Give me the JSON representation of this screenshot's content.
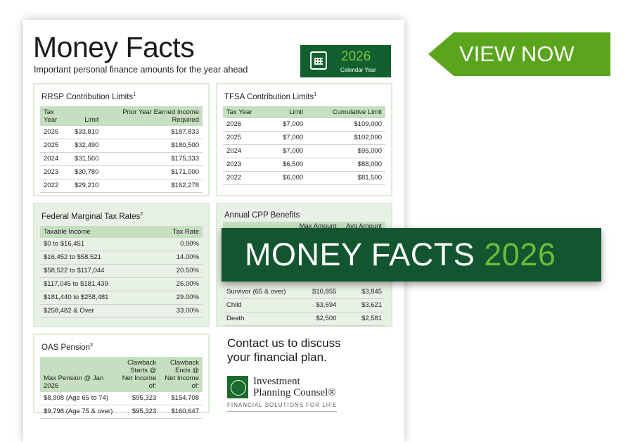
{
  "header": {
    "title": "Money Facts",
    "subtitle": "Important personal finance amounts for the year ahead",
    "calendar_year": "2026",
    "calendar_label": "Calendar Year"
  },
  "rrsp": {
    "title": "RRSP Contribution Limits",
    "sup": "1",
    "headers": [
      "Tax Year",
      "Limit",
      "Prior Year Earned Income Required"
    ],
    "rows": [
      [
        "2026",
        "$33,810",
        "$187,833"
      ],
      [
        "2025",
        "$32,490",
        "$180,500"
      ],
      [
        "2024",
        "$31,560",
        "$175,333"
      ],
      [
        "2023",
        "$30,780",
        "$171,000"
      ],
      [
        "2022",
        "$29,210",
        "$162,278"
      ]
    ]
  },
  "tfsa": {
    "title": "TFSA Contribution Limits",
    "sup": "1",
    "headers": [
      "Tax Year",
      "Limit",
      "Cumulative Limit"
    ],
    "rows": [
      [
        "2026",
        "$7,000",
        "$109,000"
      ],
      [
        "2025",
        "$7,000",
        "$102,000"
      ],
      [
        "2024",
        "$7,000",
        "$95,000"
      ],
      [
        "2023",
        "$6,500",
        "$88,000"
      ],
      [
        "2022",
        "$6,000",
        "$81,500"
      ]
    ]
  },
  "federal": {
    "title": "Federal Marginal Tax Rates",
    "sup": "2",
    "headers": [
      "Taxable Income",
      "Tax Rate"
    ],
    "rows": [
      [
        "$0 to $16,451",
        "0.00%"
      ],
      [
        "$16,452 to $58,521",
        "14.00%"
      ],
      [
        "$58,522 to $117,044",
        "20.50%"
      ],
      [
        "$117,045 to $181,439",
        "26.00%"
      ],
      [
        "$181,440  to $258,481",
        "29.00%"
      ],
      [
        "$258,482 & Over",
        "33.00%"
      ]
    ]
  },
  "cpp": {
    "title": "Annual CPP Benefits",
    "sup": "",
    "headers": [
      "",
      "Max Amount",
      "Avg Amount"
    ],
    "rows": [
      [
        "Survivor (65 & over)",
        "$10,855",
        "$3,845"
      ],
      [
        "Child",
        "$3,694",
        "$3,621"
      ],
      [
        "Death",
        "$2,500",
        "$2,581"
      ]
    ]
  },
  "oas": {
    "title": "OAS Pension",
    "sup": "3",
    "headers": [
      "Max Pension @ Jan 2026",
      "Clawback Starts @ Net Income of:",
      "Clawback Ends @ Net Income of:"
    ],
    "rows": [
      [
        "$8,908 (Age 65 to 74)",
        "$95,323",
        "$154,708"
      ],
      [
        "$9,798 (Age 75 & over)",
        "$95,323",
        "$160,647"
      ]
    ]
  },
  "contact": {
    "line1": "Contact us to discuss",
    "line2": "your financial plan."
  },
  "logo": {
    "name1": "Investment",
    "name2": "Planning Counsel®",
    "tagline": "FINANCIAL SOLUTIONS FOR LIFE"
  },
  "banner": {
    "text": "MONEY FACTS",
    "year": "2026"
  },
  "cta": {
    "label": "VIEW NOW"
  },
  "colors": {
    "dark_green": "#12552e",
    "accent_green": "#5aa51c",
    "table_header": "#c5dfc0",
    "box_tint": "#e8f1e5"
  }
}
